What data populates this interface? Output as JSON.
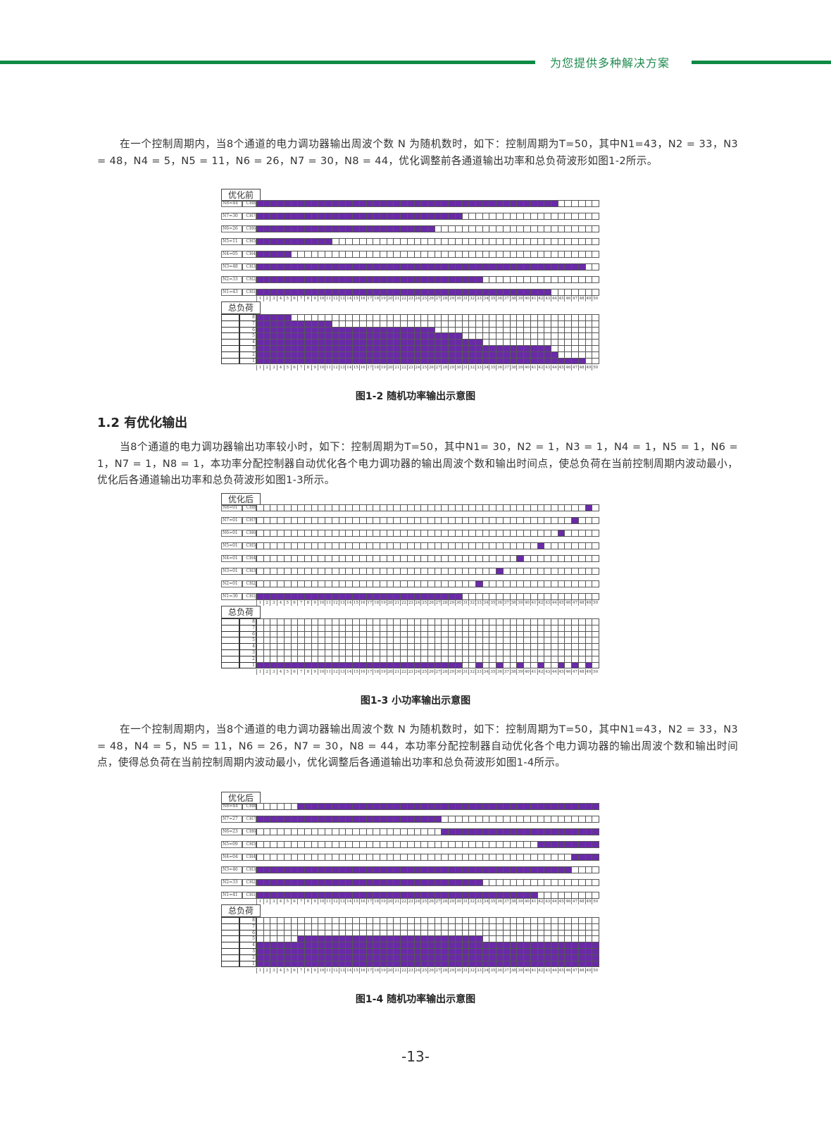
{
  "header": {
    "tagline": "为您提供多种解决方案",
    "accent_color": "#0f8a45"
  },
  "paragraphs": [
    "在一个控制周期内，当8个通道的电力调功器输出周波个数 N 为随机数时，如下：控制周期为T=50，其中N1=43，N2 = 33，N3 = 48，N4 = 5，N5 = 11，N6 = 26，N7 = 30，N8 = 44，优化调整前各通道输出功率和总负荷波形如图1-2所示。",
    "当8个通道的电力调功器输出功率较小时，如下：控制周期为T=50，其中N1= 30，N2 = 1，N3 = 1，N4 = 1，N5 = 1，N6 = 1，N7 = 1，N8 = 1，本功率分配控制器自动优化各个电力调功器的输出周波个数和输出时间点，使总负荷在当前控制周期内波动最小，优化后各通道输出功率和总负荷波形如图1-3所示。",
    "在一个控制周期内，当8个通道的电力调功器输出周波个数 N 为随机数时，如下：控制周期为T=50，其中N1=43，N2 = 33，N3 = 48，N4 = 5，N5 = 11，N6 = 26，N7 = 30，N8 = 44，本功率分配控制器自动优化各个电力调功器的输出周波个数和输出时间点，使得总负荷在当前控制周期内波动最小，优化调整后各通道输出功率和总负荷波形如图1-4所示。"
  ],
  "section_heading": "1.2 有优化输出",
  "page_number": "-13-",
  "chart_data": [
    {
      "type": "heatmap",
      "title": "优化前",
      "caption": "图1-2 随机功率输出示意图",
      "load_title": "总负荷",
      "color": "#6a2aa8",
      "x": {
        "min": 1,
        "max": 50
      },
      "load_levels": [
        "8",
        "7",
        "6",
        "5",
        "4",
        "3",
        "2",
        "1"
      ],
      "channels": [
        {
          "label": "N8=44",
          "name": "CH8",
          "on": [
            [
              1,
              44
            ]
          ]
        },
        {
          "label": "N7=30",
          "name": "CH7",
          "on": [
            [
              1,
              30
            ]
          ]
        },
        {
          "label": "N6=26",
          "name": "CH6",
          "on": [
            [
              1,
              26
            ]
          ]
        },
        {
          "label": "N5=11",
          "name": "CH5",
          "on": [
            [
              1,
              11
            ]
          ]
        },
        {
          "label": "N4=05",
          "name": "CH4",
          "on": [
            [
              1,
              5
            ]
          ]
        },
        {
          "label": "N3=48",
          "name": "CH3",
          "on": [
            [
              1,
              48
            ]
          ]
        },
        {
          "label": "N2=33",
          "name": "CH2",
          "on": [
            [
              1,
              33
            ]
          ]
        },
        {
          "label": "N1=43",
          "name": "CH1",
          "on": [
            [
              1,
              43
            ]
          ]
        }
      ]
    },
    {
      "type": "heatmap",
      "title": "优化后",
      "caption": "图1-3 小功率输出示意图",
      "load_title": "总负荷",
      "color": "#6a2aa8",
      "x": {
        "min": 1,
        "max": 50
      },
      "load_levels": [
        "8",
        "7",
        "6",
        "5",
        "4",
        "3",
        "2",
        "1"
      ],
      "channels": [
        {
          "label": "N8=01",
          "name": "CH8",
          "on": [
            [
              49,
              49
            ]
          ]
        },
        {
          "label": "N7=01",
          "name": "CH7",
          "on": [
            [
              47,
              47
            ]
          ]
        },
        {
          "label": "N6=01",
          "name": "CH6",
          "on": [
            [
              45,
              45
            ]
          ]
        },
        {
          "label": "N5=01",
          "name": "CH5",
          "on": [
            [
              42,
              42
            ]
          ]
        },
        {
          "label": "N4=01",
          "name": "CH4",
          "on": [
            [
              39,
              39
            ]
          ]
        },
        {
          "label": "N3=01",
          "name": "CH3",
          "on": [
            [
              36,
              36
            ]
          ]
        },
        {
          "label": "N2=01",
          "name": "CH2",
          "on": [
            [
              33,
              33
            ]
          ]
        },
        {
          "label": "N1=30",
          "name": "CH1",
          "on": [
            [
              1,
              30
            ]
          ]
        }
      ]
    },
    {
      "type": "heatmap",
      "title": "优化后",
      "caption": "图1-4 随机功率输出示意图",
      "load_title": "总负荷",
      "color": "#6a2aa8",
      "x": {
        "min": 1,
        "max": 50
      },
      "load_levels": [
        "8",
        "7",
        "6",
        "5",
        "4",
        "3",
        "2",
        "1"
      ],
      "channels": [
        {
          "label": "N8=44",
          "name": "CH8",
          "on": [
            [
              7,
              50
            ]
          ]
        },
        {
          "label": "N7=27",
          "name": "CH7",
          "on": [
            [
              1,
              27
            ]
          ]
        },
        {
          "label": "N6=23",
          "name": "CH6",
          "on": [
            [
              28,
              50
            ]
          ]
        },
        {
          "label": "N5=09",
          "name": "CH5",
          "on": [
            [
              42,
              50
            ]
          ]
        },
        {
          "label": "N4=04",
          "name": "CH4",
          "on": [
            [
              47,
              50
            ]
          ]
        },
        {
          "label": "N3=46",
          "name": "CH3",
          "on": [
            [
              1,
              46
            ]
          ]
        },
        {
          "label": "N2=33",
          "name": "CH2",
          "on": [
            [
              1,
              33
            ]
          ]
        },
        {
          "label": "N1=41",
          "name": "CH1",
          "on": [
            [
              1,
              41
            ]
          ]
        }
      ]
    }
  ]
}
